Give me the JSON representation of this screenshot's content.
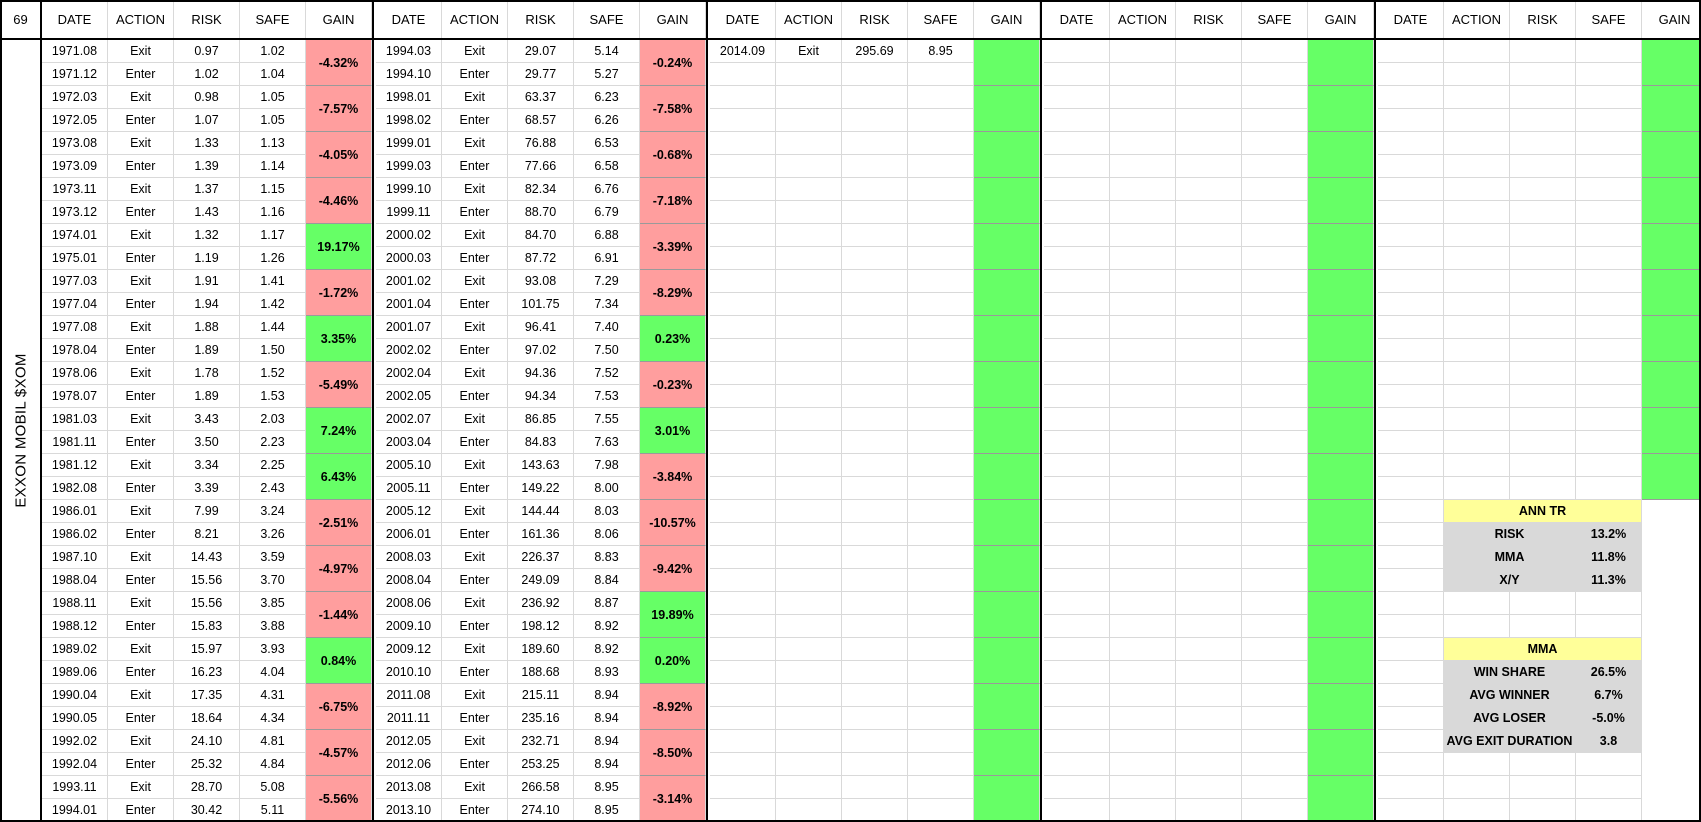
{
  "sheet": {
    "corner": "69",
    "ticker_label": "EXXON MOBIL $XOM",
    "headers": [
      "DATE",
      "ACTION",
      "RISK",
      "SAFE",
      "GAIN"
    ]
  },
  "blocks": [
    {
      "rows": [
        [
          "1971.08",
          "Exit",
          "0.97",
          "1.02"
        ],
        [
          "1971.12",
          "Enter",
          "1.02",
          "1.04"
        ],
        [
          "1972.03",
          "Exit",
          "0.98",
          "1.05"
        ],
        [
          "1972.05",
          "Enter",
          "1.07",
          "1.05"
        ],
        [
          "1973.08",
          "Exit",
          "1.33",
          "1.13"
        ],
        [
          "1973.09",
          "Enter",
          "1.39",
          "1.14"
        ],
        [
          "1973.11",
          "Exit",
          "1.37",
          "1.15"
        ],
        [
          "1973.12",
          "Enter",
          "1.43",
          "1.16"
        ],
        [
          "1974.01",
          "Exit",
          "1.32",
          "1.17"
        ],
        [
          "1975.01",
          "Enter",
          "1.19",
          "1.26"
        ],
        [
          "1977.03",
          "Exit",
          "1.91",
          "1.41"
        ],
        [
          "1977.04",
          "Enter",
          "1.94",
          "1.42"
        ],
        [
          "1977.08",
          "Exit",
          "1.88",
          "1.44"
        ],
        [
          "1978.04",
          "Enter",
          "1.89",
          "1.50"
        ],
        [
          "1978.06",
          "Exit",
          "1.78",
          "1.52"
        ],
        [
          "1978.07",
          "Enter",
          "1.89",
          "1.53"
        ],
        [
          "1981.03",
          "Exit",
          "3.43",
          "2.03"
        ],
        [
          "1981.11",
          "Enter",
          "3.50",
          "2.23"
        ],
        [
          "1981.12",
          "Exit",
          "3.34",
          "2.25"
        ],
        [
          "1982.08",
          "Enter",
          "3.39",
          "2.43"
        ],
        [
          "1986.01",
          "Exit",
          "7.99",
          "3.24"
        ],
        [
          "1986.02",
          "Enter",
          "8.21",
          "3.26"
        ],
        [
          "1987.10",
          "Exit",
          "14.43",
          "3.59"
        ],
        [
          "1988.04",
          "Enter",
          "15.56",
          "3.70"
        ],
        [
          "1988.11",
          "Exit",
          "15.56",
          "3.85"
        ],
        [
          "1988.12",
          "Enter",
          "15.83",
          "3.88"
        ],
        [
          "1989.02",
          "Exit",
          "15.97",
          "3.93"
        ],
        [
          "1989.06",
          "Enter",
          "16.23",
          "4.04"
        ],
        [
          "1990.04",
          "Exit",
          "17.35",
          "4.31"
        ],
        [
          "1990.05",
          "Enter",
          "18.64",
          "4.34"
        ],
        [
          "1992.02",
          "Exit",
          "24.10",
          "4.81"
        ],
        [
          "1992.04",
          "Enter",
          "25.32",
          "4.84"
        ],
        [
          "1993.11",
          "Exit",
          "28.70",
          "5.08"
        ],
        [
          "1994.01",
          "Enter",
          "30.42",
          "5.11"
        ]
      ],
      "gains": [
        "-4.32%",
        "-7.57%",
        "-4.05%",
        "-4.46%",
        "19.17%",
        "-1.72%",
        "3.35%",
        "-5.49%",
        "7.24%",
        "6.43%",
        "-2.51%",
        "-4.97%",
        "-1.44%",
        "0.84%",
        "-6.75%",
        "-4.57%",
        "-5.56%"
      ],
      "gain_count": 17
    },
    {
      "rows": [
        [
          "1994.03",
          "Exit",
          "29.07",
          "5.14"
        ],
        [
          "1994.10",
          "Enter",
          "29.77",
          "5.27"
        ],
        [
          "1998.01",
          "Exit",
          "63.37",
          "6.23"
        ],
        [
          "1998.02",
          "Enter",
          "68.57",
          "6.26"
        ],
        [
          "1999.01",
          "Exit",
          "76.88",
          "6.53"
        ],
        [
          "1999.03",
          "Enter",
          "77.66",
          "6.58"
        ],
        [
          "1999.10",
          "Exit",
          "82.34",
          "6.76"
        ],
        [
          "1999.11",
          "Enter",
          "88.70",
          "6.79"
        ],
        [
          "2000.02",
          "Exit",
          "84.70",
          "6.88"
        ],
        [
          "2000.03",
          "Enter",
          "87.72",
          "6.91"
        ],
        [
          "2001.02",
          "Exit",
          "93.08",
          "7.29"
        ],
        [
          "2001.04",
          "Enter",
          "101.75",
          "7.34"
        ],
        [
          "2001.07",
          "Exit",
          "96.41",
          "7.40"
        ],
        [
          "2002.02",
          "Enter",
          "97.02",
          "7.50"
        ],
        [
          "2002.04",
          "Exit",
          "94.36",
          "7.52"
        ],
        [
          "2002.05",
          "Enter",
          "94.34",
          "7.53"
        ],
        [
          "2002.07",
          "Exit",
          "86.85",
          "7.55"
        ],
        [
          "2003.04",
          "Enter",
          "84.83",
          "7.63"
        ],
        [
          "2005.10",
          "Exit",
          "143.63",
          "7.98"
        ],
        [
          "2005.11",
          "Enter",
          "149.22",
          "8.00"
        ],
        [
          "2005.12",
          "Exit",
          "144.44",
          "8.03"
        ],
        [
          "2006.01",
          "Enter",
          "161.36",
          "8.06"
        ],
        [
          "2008.03",
          "Exit",
          "226.37",
          "8.83"
        ],
        [
          "2008.04",
          "Enter",
          "249.09",
          "8.84"
        ],
        [
          "2008.06",
          "Exit",
          "236.92",
          "8.87"
        ],
        [
          "2009.10",
          "Enter",
          "198.12",
          "8.92"
        ],
        [
          "2009.12",
          "Exit",
          "189.60",
          "8.92"
        ],
        [
          "2010.10",
          "Enter",
          "188.68",
          "8.93"
        ],
        [
          "2011.08",
          "Exit",
          "215.11",
          "8.94"
        ],
        [
          "2011.11",
          "Enter",
          "235.16",
          "8.94"
        ],
        [
          "2012.05",
          "Exit",
          "232.71",
          "8.94"
        ],
        [
          "2012.06",
          "Enter",
          "253.25",
          "8.94"
        ],
        [
          "2013.08",
          "Exit",
          "266.58",
          "8.95"
        ],
        [
          "2013.10",
          "Enter",
          "274.10",
          "8.95"
        ]
      ],
      "gains": [
        "-0.24%",
        "-7.58%",
        "-0.68%",
        "-7.18%",
        "-3.39%",
        "-8.29%",
        "0.23%",
        "-0.23%",
        "3.01%",
        "-3.84%",
        "-10.57%",
        "-9.42%",
        "19.89%",
        "0.20%",
        "-8.92%",
        "-8.50%",
        "-3.14%"
      ],
      "gain_count": 17
    },
    {
      "rows": [
        [
          "2014.09",
          "Exit",
          "295.69",
          "8.95"
        ]
      ],
      "gains": [],
      "gain_count": 17
    },
    {
      "rows": [],
      "gains": [],
      "gain_count": 17
    },
    {
      "rows": [],
      "gains": [],
      "gain_count": 10
    }
  ],
  "summary": {
    "ann_tr": {
      "title": "ANN TR",
      "rows": [
        [
          "RISK",
          "13.2%"
        ],
        [
          "MMA",
          "11.8%"
        ],
        [
          "X/Y",
          "11.3%"
        ]
      ]
    },
    "mma": {
      "title": "MMA",
      "rows": [
        [
          "WIN SHARE",
          "26.5%"
        ],
        [
          "AVG WINNER",
          "6.7%"
        ],
        [
          "AVG LOSER",
          "-5.0%"
        ],
        [
          "AVG EXIT DURATION",
          "3.8"
        ]
      ]
    }
  },
  "colors": {
    "negative_gain": "#ff9e9e",
    "positive_gain": "#66ff66",
    "summary_title": "#ffff99",
    "summary_cell": "#d9d9d9"
  }
}
